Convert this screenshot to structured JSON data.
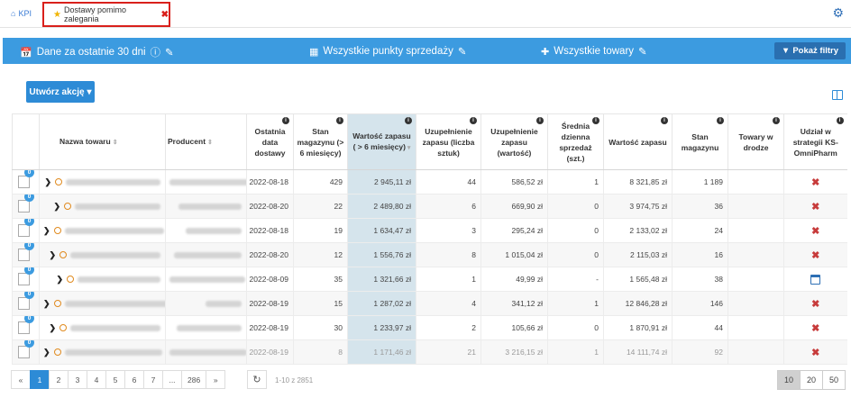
{
  "tabs": {
    "kpi": "KPI",
    "active": "Dostawy pomimo zalegania"
  },
  "filterbar": {
    "period": "Dane za ostatnie 30 dni",
    "points": "Wszystkie punkty sprzedaży",
    "goods": "Wszystkie towary",
    "show_filters": "Pokaż filtry",
    "color": "#3c9be0"
  },
  "actions": {
    "create_action": "Utwórz akcję"
  },
  "table": {
    "headers": {
      "name": "Nazwa towaru",
      "producer": "Producent",
      "last_delivery": "Ostatnia data dostawy",
      "stock_6m": "Stan magazynu (> 6 miesięcy)",
      "stock_value_6m": "Wartość zapasu ( > 6 miesięcy)",
      "replenish_qty": "Uzupełnienie zapasu (liczba sztuk)",
      "replenish_value": "Uzupełnienie zapasu (wartość)",
      "avg_daily_sales": "Średnia dzienna sprzedaż (szt.)",
      "stock_value": "Wartość zapasu",
      "stock": "Stan magazynu",
      "in_transit": "Towary w drodze",
      "strategy_share": "Udział w strategii KS-OmniPharm"
    },
    "rows": [
      {
        "badge": "0",
        "date": "2022-08-18",
        "stock_6m": "429",
        "stock_value_6m": "2 945,11 zł",
        "replenish_qty": "44",
        "replenish_value": "586,52 zł",
        "avg_sales": "1",
        "stock_value": "8 321,85 zł",
        "stock": "1 189",
        "in_transit": "",
        "strategy": "x-icon"
      },
      {
        "badge": "0",
        "date": "2022-08-20",
        "stock_6m": "22",
        "stock_value_6m": "2 489,80 zł",
        "replenish_qty": "6",
        "replenish_value": "669,90 zł",
        "avg_sales": "0",
        "stock_value": "3 974,75 zł",
        "stock": "36",
        "in_transit": "",
        "strategy": "x-icon"
      },
      {
        "badge": "0",
        "date": "2022-08-18",
        "stock_6m": "19",
        "stock_value_6m": "1 634,47 zł",
        "replenish_qty": "3",
        "replenish_value": "295,24 zł",
        "avg_sales": "0",
        "stock_value": "2 133,02 zł",
        "stock": "24",
        "in_transit": "",
        "strategy": "x-icon"
      },
      {
        "badge": "0",
        "date": "2022-08-20",
        "stock_6m": "12",
        "stock_value_6m": "1 556,76 zł",
        "replenish_qty": "8",
        "replenish_value": "1 015,04 zł",
        "avg_sales": "0",
        "stock_value": "2 115,03 zł",
        "stock": "16",
        "in_transit": "",
        "strategy": "x-icon"
      },
      {
        "badge": "0",
        "date": "2022-08-09",
        "stock_6m": "35",
        "stock_value_6m": "1 321,66 zł",
        "replenish_qty": "1",
        "replenish_value": "49,99 zł",
        "avg_sales": "-",
        "stock_value": "1 565,48 zł",
        "stock": "38",
        "in_transit": "",
        "strategy": "calendar-icon"
      },
      {
        "badge": "0",
        "date": "2022-08-19",
        "stock_6m": "15",
        "stock_value_6m": "1 287,02 zł",
        "replenish_qty": "4",
        "replenish_value": "341,12 zł",
        "avg_sales": "1",
        "stock_value": "12 846,28 zł",
        "stock": "146",
        "in_transit": "",
        "strategy": "x-icon"
      },
      {
        "badge": "0",
        "date": "2022-08-19",
        "stock_6m": "30",
        "stock_value_6m": "1 233,97 zł",
        "replenish_qty": "2",
        "replenish_value": "105,66 zł",
        "avg_sales": "0",
        "stock_value": "1 870,91 zł",
        "stock": "44",
        "in_transit": "",
        "strategy": "x-icon"
      },
      {
        "badge": "0",
        "date": "2022-08-19",
        "stock_6m": "8",
        "stock_value_6m": "1 171,46 zł",
        "replenish_qty": "21",
        "replenish_value": "3 216,15 zł",
        "avg_sales": "1",
        "stock_value": "14 111,74 zł",
        "stock": "92",
        "in_transit": "",
        "strategy": "x-icon"
      }
    ]
  },
  "pagination": {
    "prev": "«",
    "pages": [
      "1",
      "2",
      "3",
      "4",
      "5",
      "6",
      "7",
      "...",
      "286"
    ],
    "next": "»",
    "active_page": "1",
    "count_text": "1-10 z 2851",
    "page_sizes": [
      "10",
      "20",
      "50"
    ],
    "active_size": "10"
  }
}
